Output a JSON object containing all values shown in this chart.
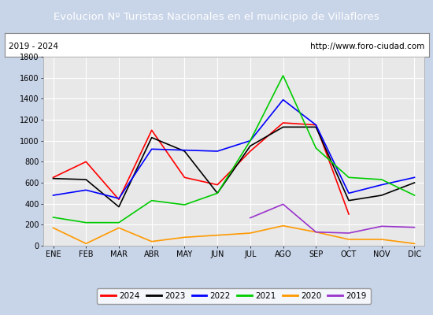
{
  "title": "Evolucion Nº Turistas Nacionales en el municipio de Villaflores",
  "title_bg": "#4d7ebf",
  "subtitle_left": "2019 - 2024",
  "subtitle_right": "http://www.foro-ciudad.com",
  "months": [
    "ENE",
    "FEB",
    "MAR",
    "ABR",
    "MAY",
    "JUN",
    "JUL",
    "AGO",
    "SEP",
    "OCT",
    "NOV",
    "DIC"
  ],
  "ylim": [
    0,
    1800
  ],
  "yticks": [
    0,
    200,
    400,
    600,
    800,
    1000,
    1200,
    1400,
    1600,
    1800
  ],
  "series": {
    "2024": {
      "color": "#ff0000",
      "data": [
        650,
        800,
        440,
        1100,
        650,
        580,
        900,
        1170,
        1150,
        300,
        null,
        null
      ]
    },
    "2023": {
      "color": "#000000",
      "data": [
        640,
        630,
        370,
        1030,
        900,
        500,
        950,
        1130,
        1130,
        430,
        480,
        600
      ]
    },
    "2022": {
      "color": "#0000ff",
      "data": [
        480,
        530,
        450,
        920,
        910,
        900,
        1000,
        1390,
        1150,
        500,
        580,
        650
      ]
    },
    "2021": {
      "color": "#00cc00",
      "data": [
        270,
        220,
        220,
        430,
        390,
        500,
        1000,
        1620,
        930,
        650,
        630,
        480
      ]
    },
    "2020": {
      "color": "#ff9900",
      "data": [
        170,
        20,
        170,
        40,
        80,
        100,
        120,
        190,
        130,
        60,
        60,
        20
      ]
    },
    "2019": {
      "color": "#9933cc",
      "data": [
        null,
        null,
        null,
        null,
        null,
        null,
        265,
        395,
        130,
        120,
        185,
        175
      ]
    }
  },
  "legend_order": [
    "2024",
    "2023",
    "2022",
    "2021",
    "2020",
    "2019"
  ],
  "plot_bg": "#e8e8e8",
  "grid_color": "#ffffff",
  "fig_bg": "#c8d4e8"
}
